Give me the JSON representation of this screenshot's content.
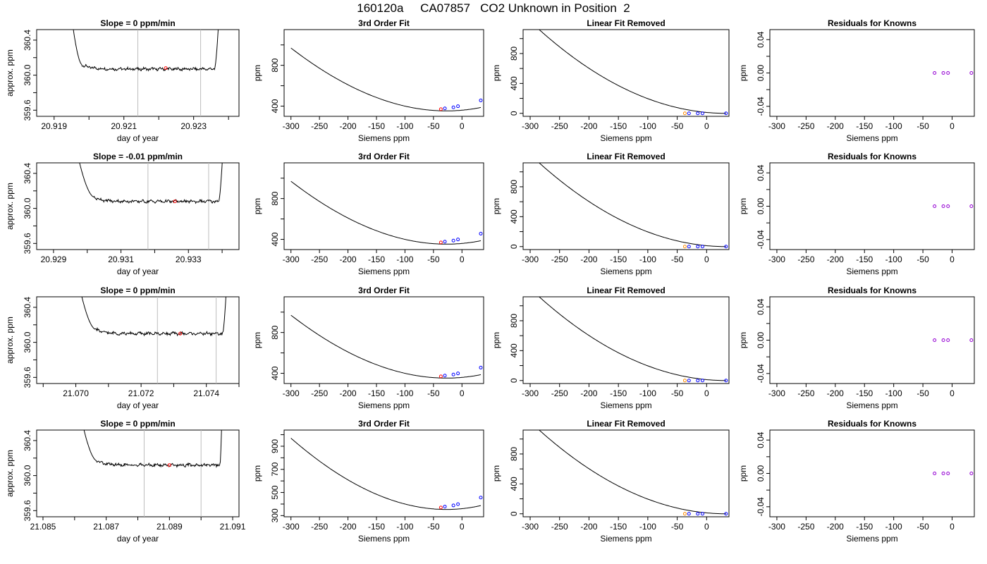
{
  "page": {
    "title": "160120a     CA07857   CO2 Unknown in Position  2"
  },
  "colors": {
    "axis": "#000000",
    "curve": "#000000",
    "marker_line": "#bdbdbd",
    "red_point": "#ff0000",
    "orange_point": "#ff8c00",
    "blue_point": "#0000ff",
    "purple_point": "#9400d3"
  },
  "chart_data": [
    {
      "row": 1,
      "type": "line",
      "title": "Slope =  0  ppm/min",
      "xlabel": "day of year",
      "ylabel": "approx. ppm",
      "xlim": [
        20.9185,
        20.9243
      ],
      "ylim": [
        359.53,
        360.52
      ],
      "xticks": [
        20.919,
        20.92,
        20.921,
        20.922,
        20.923,
        20.924
      ],
      "xtick_labels": [
        "20.919",
        "",
        "20.921",
        "",
        "20.923",
        ""
      ],
      "yticks": [
        359.6,
        359.8,
        360.0,
        360.2,
        360.4
      ],
      "ytick_labels": [
        "359.6",
        "",
        "360.0",
        "",
        "360.4"
      ],
      "vlines": [
        20.9214,
        20.9232
      ],
      "trace": {
        "x_start": 20.9194,
        "x_end": 20.9238,
        "plateau": 360.07,
        "plateau_x": [
          20.9198,
          20.9236
        ]
      },
      "red_point": [
        20.9222,
        360.08
      ]
    },
    {
      "row": 1,
      "type": "line",
      "title": "3rd Order Fit",
      "xlabel": "Siemens ppm",
      "ylabel": "ppm",
      "xlim": [
        -312,
        38
      ],
      "ylim": [
        300,
        1150
      ],
      "xticks": [
        -300,
        -250,
        -200,
        -150,
        -100,
        -50,
        0
      ],
      "xtick_labels": [
        "-300",
        "-250",
        "-200",
        "-150",
        "-100",
        "-50",
        "0"
      ],
      "yticks": [
        400,
        600,
        800,
        1000
      ],
      "ytick_labels": [
        "400",
        "",
        "800",
        ""
      ],
      "curve": {
        "coef": [
          360,
          0.5,
          0.0093,
          2.86e-06
        ],
        "x_range": [
          -300,
          33
        ]
      },
      "points_blue": [
        [
          -30,
          378
        ],
        [
          -15,
          388
        ],
        [
          -7,
          399
        ],
        [
          33,
          456
        ]
      ],
      "points_red": [
        [
          -37,
          370
        ]
      ]
    },
    {
      "row": 1,
      "type": "line",
      "title": "Linear Fit Removed",
      "xlabel": "Siemens ppm",
      "ylabel": "ppm",
      "xlim": [
        -312,
        38
      ],
      "ylim": [
        -40,
        1120
      ],
      "xticks": [
        -300,
        -250,
        -200,
        -150,
        -100,
        -50,
        0
      ],
      "xtick_labels": [
        "-300",
        "-250",
        "-200",
        "-150",
        "-100",
        "-50",
        "0"
      ],
      "yticks": [
        0,
        200,
        400,
        600,
        800,
        1000
      ],
      "ytick_labels": [
        "0",
        "",
        "400",
        "",
        "800",
        ""
      ],
      "curve": {
        "a": 0.0111,
        "c": 33,
        "x_range": [
          -300,
          33
        ]
      },
      "points_blue": [
        [
          -30,
          0
        ],
        [
          -15,
          0
        ],
        [
          -7,
          0
        ],
        [
          33,
          0
        ]
      ],
      "points_orange": [
        [
          -37,
          0
        ]
      ]
    },
    {
      "row": 1,
      "type": "scatter",
      "title": "Residuals for Knowns",
      "xlabel": "Siemens ppm",
      "ylabel": "ppm",
      "xlim": [
        -312,
        38
      ],
      "ylim": [
        -0.052,
        0.052
      ],
      "xticks": [
        -300,
        -250,
        -200,
        -150,
        -100,
        -50,
        0
      ],
      "xtick_labels": [
        "-300",
        "-250",
        "-200",
        "-150",
        "-100",
        "-50",
        "0"
      ],
      "yticks": [
        -0.04,
        -0.02,
        0.0,
        0.02,
        0.04
      ],
      "ytick_labels": [
        "-0.04",
        "",
        "0.00",
        "",
        "0.04"
      ],
      "points_purple": [
        [
          -30,
          0
        ],
        [
          -15,
          0
        ],
        [
          -7,
          0
        ],
        [
          33,
          0
        ]
      ]
    },
    {
      "row": 2,
      "type": "line",
      "title": "Slope =  -0.01  ppm/min",
      "xlabel": "day of year",
      "ylabel": "approx. ppm",
      "xlim": [
        20.9285,
        20.9345
      ],
      "ylim": [
        359.53,
        360.52
      ],
      "xticks": [
        20.929,
        20.93,
        20.931,
        20.932,
        20.933,
        20.934
      ],
      "xtick_labels": [
        "20.929",
        "",
        "20.931",
        "",
        "20.933",
        ""
      ],
      "yticks": [
        359.6,
        359.8,
        360.0,
        360.2,
        360.4
      ],
      "ytick_labels": [
        "359.6",
        "",
        "360.0",
        "",
        "360.4"
      ],
      "vlines": [
        20.9318,
        20.9336
      ],
      "trace": {
        "x_start": 20.9295,
        "x_end": 20.9341,
        "plateau": 360.08,
        "plateau_x": [
          20.9302,
          20.9339
        ]
      },
      "red_point": [
        20.9326,
        360.08
      ]
    },
    {
      "row": 2,
      "type": "line",
      "title": "3rd Order Fit",
      "xlabel": "Siemens ppm",
      "ylabel": "ppm",
      "xlim": [
        -312,
        38
      ],
      "ylim": [
        300,
        1150
      ],
      "xticks": [
        -300,
        -250,
        -200,
        -150,
        -100,
        -50,
        0
      ],
      "xtick_labels": [
        "-300",
        "-250",
        "-200",
        "-150",
        "-100",
        "-50",
        "0"
      ],
      "yticks": [
        400,
        600,
        800,
        1000
      ],
      "ytick_labels": [
        "400",
        "",
        "800",
        ""
      ],
      "curve": {
        "coef": [
          360,
          0.5,
          0.0093,
          2.86e-06
        ],
        "x_range": [
          -300,
          33
        ]
      },
      "points_blue": [
        [
          -30,
          378
        ],
        [
          -15,
          388
        ],
        [
          -7,
          399
        ],
        [
          33,
          456
        ]
      ],
      "points_red": [
        [
          -37,
          370
        ]
      ]
    },
    {
      "row": 2,
      "type": "line",
      "title": "Linear Fit Removed",
      "xlabel": "Siemens ppm",
      "ylabel": "ppm",
      "xlim": [
        -312,
        38
      ],
      "ylim": [
        -40,
        1120
      ],
      "xticks": [
        -300,
        -250,
        -200,
        -150,
        -100,
        -50,
        0
      ],
      "xtick_labels": [
        "-300",
        "-250",
        "-200",
        "-150",
        "-100",
        "-50",
        "0"
      ],
      "yticks": [
        0,
        200,
        400,
        600,
        800,
        1000
      ],
      "ytick_labels": [
        "0",
        "",
        "400",
        "",
        "800",
        ""
      ],
      "curve": {
        "a": 0.0111,
        "c": 33,
        "x_range": [
          -300,
          33
        ]
      },
      "points_blue": [
        [
          -30,
          0
        ],
        [
          -15,
          0
        ],
        [
          -7,
          0
        ],
        [
          33,
          0
        ]
      ],
      "points_orange": [
        [
          -37,
          0
        ]
      ]
    },
    {
      "row": 2,
      "type": "scatter",
      "title": "Residuals for Knowns",
      "xlabel": "Siemens ppm",
      "ylabel": "ppm",
      "xlim": [
        -312,
        38
      ],
      "ylim": [
        -0.052,
        0.052
      ],
      "xticks": [
        -300,
        -250,
        -200,
        -150,
        -100,
        -50,
        0
      ],
      "xtick_labels": [
        "-300",
        "-250",
        "-200",
        "-150",
        "-100",
        "-50",
        "0"
      ],
      "yticks": [
        -0.04,
        -0.02,
        0.0,
        0.02,
        0.04
      ],
      "ytick_labels": [
        "-0.04",
        "",
        "0.00",
        "",
        "0.04"
      ],
      "points_purple": [
        [
          -30,
          0
        ],
        [
          -15,
          0
        ],
        [
          -7,
          0
        ],
        [
          33,
          0
        ]
      ]
    },
    {
      "row": 3,
      "type": "line",
      "title": "Slope =  0  ppm/min",
      "xlabel": "day of year",
      "ylabel": "approx. ppm",
      "xlim": [
        21.0688,
        21.075
      ],
      "ylim": [
        359.53,
        360.52
      ],
      "xticks": [
        21.069,
        21.07,
        21.071,
        21.072,
        21.073,
        21.074,
        21.075
      ],
      "xtick_labels": [
        "",
        "21.070",
        "",
        "21.072",
        "",
        "21.074",
        ""
      ],
      "yticks": [
        359.6,
        359.8,
        360.0,
        360.2,
        360.4
      ],
      "ytick_labels": [
        "359.6",
        "",
        "360.0",
        "",
        "360.4"
      ],
      "vlines": [
        21.0725,
        21.0743
      ],
      "trace": {
        "x_start": 21.0699,
        "x_end": 21.0747,
        "plateau": 360.1,
        "plateau_x": [
          21.0706,
          21.0745
        ]
      },
      "red_point": [
        21.0732,
        360.1
      ]
    },
    {
      "row": 3,
      "type": "line",
      "title": "3rd Order Fit",
      "xlabel": "Siemens ppm",
      "ylabel": "ppm",
      "xlim": [
        -312,
        38
      ],
      "ylim": [
        300,
        1150
      ],
      "xticks": [
        -300,
        -250,
        -200,
        -150,
        -100,
        -50,
        0
      ],
      "xtick_labels": [
        "-300",
        "-250",
        "-200",
        "-150",
        "-100",
        "-50",
        "0"
      ],
      "yticks": [
        400,
        600,
        800,
        1000
      ],
      "ytick_labels": [
        "400",
        "",
        "800",
        ""
      ],
      "curve": {
        "coef": [
          360,
          0.5,
          0.0093,
          2.86e-06
        ],
        "x_range": [
          -300,
          33
        ]
      },
      "points_blue": [
        [
          -30,
          378
        ],
        [
          -15,
          388
        ],
        [
          -7,
          399
        ],
        [
          33,
          456
        ]
      ],
      "points_red": [
        [
          -37,
          370
        ]
      ]
    },
    {
      "row": 3,
      "type": "line",
      "title": "Linear Fit Removed",
      "xlabel": "Siemens ppm",
      "ylabel": "ppm",
      "xlim": [
        -312,
        38
      ],
      "ylim": [
        -40,
        1120
      ],
      "xticks": [
        -300,
        -250,
        -200,
        -150,
        -100,
        -50,
        0
      ],
      "xtick_labels": [
        "-300",
        "-250",
        "-200",
        "-150",
        "-100",
        "-50",
        "0"
      ],
      "yticks": [
        0,
        200,
        400,
        600,
        800,
        1000
      ],
      "ytick_labels": [
        "0",
        "",
        "400",
        "",
        "800",
        ""
      ],
      "curve": {
        "a": 0.0111,
        "c": 33,
        "x_range": [
          -300,
          33
        ]
      },
      "points_blue": [
        [
          -30,
          0
        ],
        [
          -15,
          0
        ],
        [
          -7,
          0
        ],
        [
          33,
          0
        ]
      ],
      "points_orange": [
        [
          -37,
          0
        ]
      ]
    },
    {
      "row": 3,
      "type": "scatter",
      "title": "Residuals for Knowns",
      "xlabel": "Siemens ppm",
      "ylabel": "ppm",
      "xlim": [
        -312,
        38
      ],
      "ylim": [
        -0.052,
        0.052
      ],
      "xticks": [
        -300,
        -250,
        -200,
        -150,
        -100,
        -50,
        0
      ],
      "xtick_labels": [
        "-300",
        "-250",
        "-200",
        "-150",
        "-100",
        "-50",
        "0"
      ],
      "yticks": [
        -0.04,
        -0.02,
        0.0,
        0.02,
        0.04
      ],
      "ytick_labels": [
        "-0.04",
        "",
        "0.00",
        "",
        "0.04"
      ],
      "points_purple": [
        [
          -30,
          0
        ],
        [
          -15,
          0
        ],
        [
          -7,
          0
        ],
        [
          33,
          0
        ]
      ]
    },
    {
      "row": 4,
      "type": "line",
      "title": "Slope =  0  ppm/min",
      "xlabel": "day of year",
      "ylabel": "approx. ppm",
      "xlim": [
        21.0848,
        21.0912
      ],
      "ylim": [
        359.53,
        360.52
      ],
      "xticks": [
        21.085,
        21.086,
        21.087,
        21.088,
        21.089,
        21.09,
        21.091
      ],
      "xtick_labels": [
        "21.085",
        "",
        "21.087",
        "",
        "21.089",
        "",
        "21.091"
      ],
      "yticks": [
        359.6,
        359.8,
        360.0,
        360.2,
        360.4
      ],
      "ytick_labels": [
        "359.6",
        "",
        "360.0",
        "",
        "360.4"
      ],
      "vlines": [
        21.0882,
        21.09
      ],
      "trace": {
        "x_start": 21.086,
        "x_end": 21.0907,
        "plateau": 360.12,
        "plateau_x": [
          21.0867,
          21.0906
        ]
      },
      "red_point": [
        21.089,
        360.12
      ]
    },
    {
      "row": 4,
      "type": "line",
      "title": "3rd Order Fit",
      "xlabel": "Siemens ppm",
      "ylabel": "ppm",
      "xlim": [
        -312,
        38
      ],
      "ylim": [
        290,
        1040
      ],
      "xticks": [
        -300,
        -250,
        -200,
        -150,
        -100,
        -50,
        0
      ],
      "xtick_labels": [
        "-300",
        "-250",
        "-200",
        "-150",
        "-100",
        "-50",
        "0"
      ],
      "yticks": [
        300,
        400,
        500,
        600,
        700,
        800,
        900,
        1000
      ],
      "ytick_labels": [
        "300",
        "",
        "500",
        "",
        "700",
        "",
        "900",
        ""
      ],
      "curve": {
        "coef": [
          360,
          0.5,
          0.0093,
          2.86e-06
        ],
        "x_range": [
          -300,
          33
        ]
      },
      "points_blue": [
        [
          -30,
          378
        ],
        [
          -15,
          388
        ],
        [
          -7,
          399
        ],
        [
          33,
          456
        ]
      ],
      "points_red": [
        [
          -37,
          370
        ]
      ]
    },
    {
      "row": 4,
      "type": "line",
      "title": "Linear Fit Removed",
      "xlabel": "Siemens ppm",
      "ylabel": "ppm",
      "xlim": [
        -312,
        38
      ],
      "ylim": [
        -40,
        1120
      ],
      "xticks": [
        -300,
        -250,
        -200,
        -150,
        -100,
        -50,
        0
      ],
      "xtick_labels": [
        "-300",
        "-250",
        "-200",
        "-150",
        "-100",
        "-50",
        "0"
      ],
      "yticks": [
        0,
        200,
        400,
        600,
        800,
        1000
      ],
      "ytick_labels": [
        "0",
        "",
        "400",
        "",
        "800",
        ""
      ],
      "curve": {
        "a": 0.0111,
        "c": 33,
        "x_range": [
          -300,
          33
        ]
      },
      "points_blue": [
        [
          -30,
          0
        ],
        [
          -15,
          0
        ],
        [
          -7,
          0
        ],
        [
          33,
          0
        ]
      ],
      "points_orange": [
        [
          -37,
          0
        ]
      ]
    },
    {
      "row": 4,
      "type": "scatter",
      "title": "Residuals for Knowns",
      "xlabel": "Siemens ppm",
      "ylabel": "ppm",
      "xlim": [
        -312,
        38
      ],
      "ylim": [
        -0.052,
        0.052
      ],
      "xticks": [
        -300,
        -250,
        -200,
        -150,
        -100,
        -50,
        0
      ],
      "xtick_labels": [
        "-300",
        "-250",
        "-200",
        "-150",
        "-100",
        "-50",
        "0"
      ],
      "yticks": [
        -0.04,
        -0.02,
        0.0,
        0.02,
        0.04
      ],
      "ytick_labels": [
        "-0.04",
        "",
        "0.00",
        "",
        "0.04"
      ],
      "points_purple": [
        [
          -30,
          0
        ],
        [
          -15,
          0
        ],
        [
          -7,
          0
        ],
        [
          33,
          0
        ]
      ]
    }
  ]
}
